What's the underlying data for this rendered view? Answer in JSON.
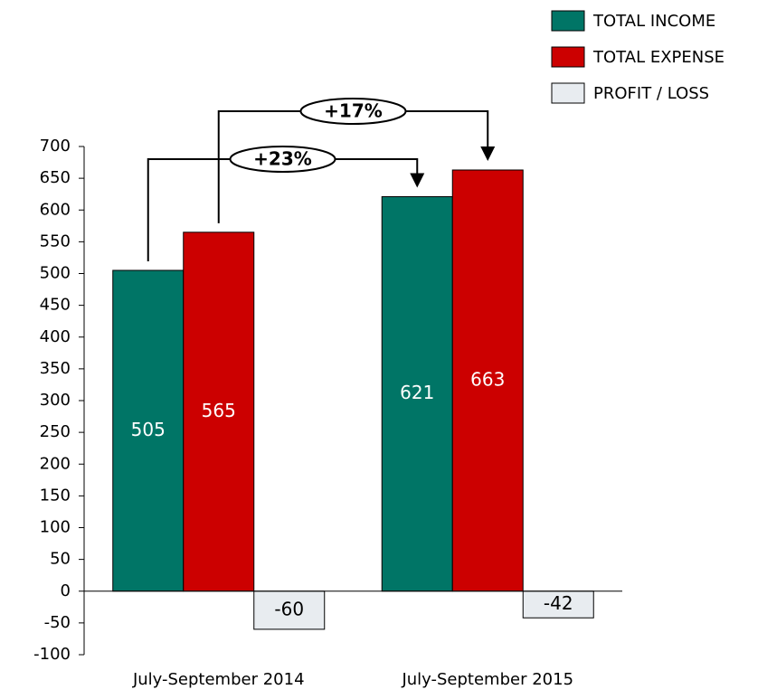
{
  "chart_data": {
    "type": "bar",
    "categories": [
      "July-September 2014",
      "July-September 2015"
    ],
    "series": [
      {
        "name": "TOTAL INCOME",
        "color": "#007566",
        "values": [
          505,
          621
        ]
      },
      {
        "name": "TOTAL EXPENSE",
        "color": "#cc0000",
        "values": [
          565,
          663
        ]
      },
      {
        "name": "PROFIT / LOSS",
        "color": "#e8ecf0",
        "values": [
          -60,
          -42
        ]
      }
    ],
    "ylim": [
      -100,
      700
    ],
    "yticks": [
      -100,
      -50,
      0,
      50,
      100,
      150,
      200,
      250,
      300,
      350,
      400,
      450,
      500,
      550,
      600,
      650,
      700
    ],
    "annotations": [
      {
        "text": "+23%",
        "series": "TOTAL INCOME"
      },
      {
        "text": "+17%",
        "series": "TOTAL EXPENSE"
      }
    ],
    "legend": "top-right"
  }
}
